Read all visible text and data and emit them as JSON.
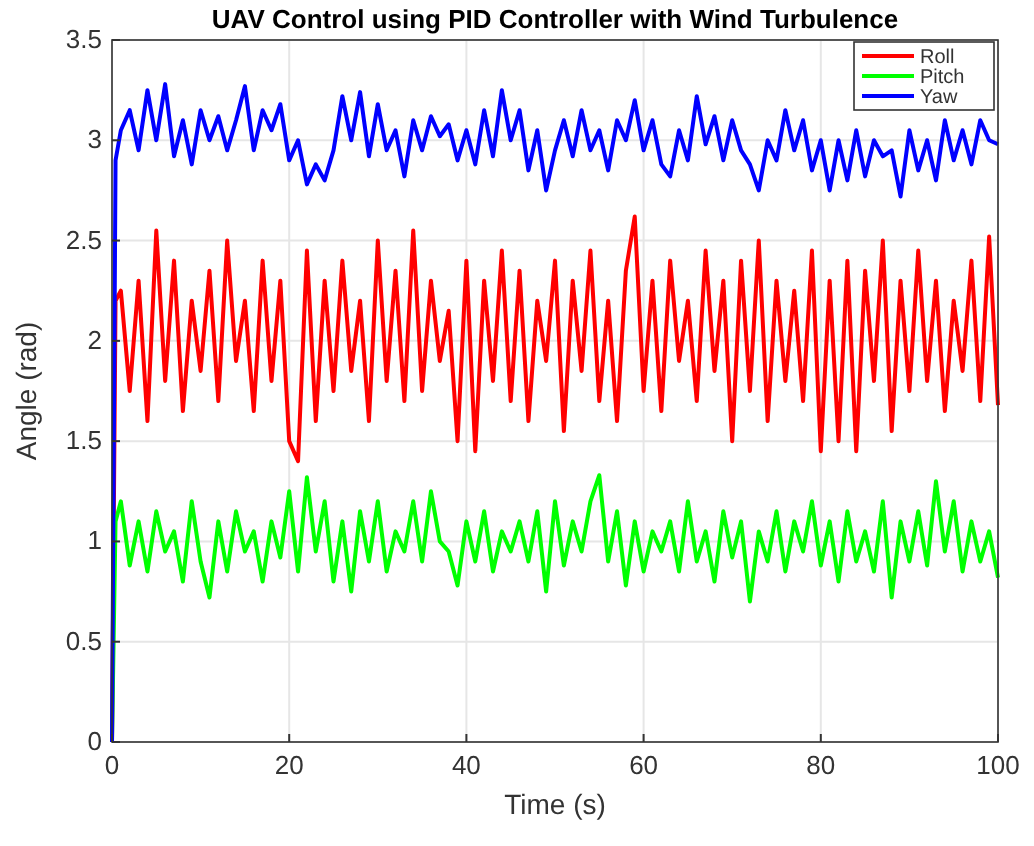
{
  "chart_data": {
    "type": "line",
    "title": "UAV Control using PID Controller with Wind Turbulence",
    "xlabel": "Time (s)",
    "ylabel": "Angle (rad)",
    "x": [
      0,
      0.4,
      1,
      2,
      3,
      4,
      5,
      6,
      7,
      8,
      9,
      10,
      11,
      12,
      13,
      14,
      15,
      16,
      17,
      18,
      19,
      20,
      21,
      22,
      23,
      24,
      25,
      26,
      27,
      28,
      29,
      30,
      31,
      32,
      33,
      34,
      35,
      36,
      37,
      38,
      39,
      40,
      41,
      42,
      43,
      44,
      45,
      46,
      47,
      48,
      49,
      50,
      51,
      52,
      53,
      54,
      55,
      56,
      57,
      58,
      59,
      60,
      61,
      62,
      63,
      64,
      65,
      66,
      67,
      68,
      69,
      70,
      71,
      72,
      73,
      74,
      75,
      76,
      77,
      78,
      79,
      80,
      81,
      82,
      83,
      84,
      85,
      86,
      87,
      88,
      89,
      90,
      91,
      92,
      93,
      94,
      95,
      96,
      97,
      98,
      99,
      100
    ],
    "series": [
      {
        "name": "Roll",
        "color": "#ff0000",
        "values": [
          0,
          2.2,
          2.25,
          1.75,
          2.3,
          1.6,
          2.55,
          1.8,
          2.4,
          1.65,
          2.2,
          1.85,
          2.35,
          1.7,
          2.5,
          1.9,
          2.2,
          1.65,
          2.4,
          1.8,
          2.3,
          1.5,
          1.4,
          2.45,
          1.6,
          2.3,
          1.75,
          2.4,
          1.85,
          2.2,
          1.6,
          2.5,
          1.8,
          2.35,
          1.7,
          2.55,
          1.75,
          2.3,
          1.9,
          2.15,
          1.5,
          2.4,
          1.45,
          2.3,
          1.8,
          2.45,
          1.7,
          2.35,
          1.6,
          2.2,
          1.9,
          2.4,
          1.55,
          2.3,
          1.85,
          2.45,
          1.7,
          2.2,
          1.6,
          2.35,
          2.62,
          1.75,
          2.3,
          1.65,
          2.4,
          1.9,
          2.2,
          1.7,
          2.45,
          1.85,
          2.3,
          1.5,
          2.4,
          1.75,
          2.5,
          1.6,
          2.3,
          1.8,
          2.25,
          1.7,
          2.45,
          1.45,
          2.3,
          1.5,
          2.4,
          1.45,
          2.35,
          1.8,
          2.5,
          1.55,
          2.3,
          1.75,
          2.45,
          1.8,
          2.3,
          1.65,
          2.2,
          1.85,
          2.4,
          1.7,
          2.52,
          1.68
        ]
      },
      {
        "name": "Pitch",
        "color": "#00ff00",
        "values": [
          0,
          1.1,
          1.2,
          0.88,
          1.1,
          0.85,
          1.15,
          0.95,
          1.05,
          0.8,
          1.2,
          0.9,
          0.72,
          1.1,
          0.85,
          1.15,
          0.95,
          1.05,
          0.8,
          1.1,
          0.92,
          1.25,
          0.85,
          1.32,
          0.95,
          1.2,
          0.8,
          1.1,
          0.75,
          1.15,
          0.9,
          1.2,
          0.85,
          1.05,
          0.95,
          1.2,
          0.9,
          1.25,
          1.0,
          0.95,
          0.78,
          1.1,
          0.9,
          1.15,
          0.85,
          1.05,
          0.95,
          1.1,
          0.9,
          1.15,
          0.75,
          1.2,
          0.88,
          1.1,
          0.95,
          1.2,
          1.33,
          0.9,
          1.15,
          0.78,
          1.1,
          0.85,
          1.05,
          0.95,
          1.1,
          0.85,
          1.2,
          0.9,
          1.05,
          0.8,
          1.15,
          0.92,
          1.1,
          0.7,
          1.05,
          0.9,
          1.15,
          0.85,
          1.1,
          0.95,
          1.2,
          0.88,
          1.1,
          0.8,
          1.15,
          0.9,
          1.05,
          0.85,
          1.2,
          0.72,
          1.1,
          0.9,
          1.15,
          0.88,
          1.3,
          0.95,
          1.2,
          0.85,
          1.1,
          0.9,
          1.05,
          0.82
        ]
      },
      {
        "name": "Yaw",
        "color": "#0000ff",
        "values": [
          0,
          2.9,
          3.05,
          3.15,
          2.95,
          3.25,
          3.0,
          3.28,
          2.92,
          3.1,
          2.88,
          3.15,
          3.0,
          3.12,
          2.95,
          3.1,
          3.27,
          2.95,
          3.15,
          3.05,
          3.18,
          2.9,
          3.0,
          2.78,
          2.88,
          2.8,
          2.95,
          3.22,
          3.0,
          3.24,
          2.92,
          3.18,
          2.95,
          3.05,
          2.82,
          3.1,
          2.95,
          3.12,
          3.02,
          3.08,
          2.9,
          3.05,
          2.88,
          3.15,
          2.92,
          3.25,
          3.0,
          3.15,
          2.85,
          3.05,
          2.75,
          2.95,
          3.1,
          2.92,
          3.15,
          2.95,
          3.05,
          2.85,
          3.1,
          3.0,
          3.2,
          2.95,
          3.1,
          2.88,
          2.82,
          3.05,
          2.9,
          3.22,
          2.98,
          3.12,
          2.9,
          3.1,
          2.95,
          2.88,
          2.75,
          3.0,
          2.9,
          3.15,
          2.95,
          3.1,
          2.85,
          3.0,
          2.75,
          3.0,
          2.8,
          3.05,
          2.82,
          3.0,
          2.92,
          2.95,
          2.72,
          3.05,
          2.85,
          3.0,
          2.8,
          3.1,
          2.9,
          3.05,
          2.88,
          3.1,
          3.0,
          2.98
        ]
      }
    ],
    "xlim": [
      0,
      100
    ],
    "xticks": [
      0,
      20,
      40,
      60,
      80,
      100
    ],
    "ylim": [
      0,
      3.5
    ],
    "yticks": [
      0,
      0.5,
      1,
      1.5,
      2,
      2.5,
      3,
      3.5
    ],
    "grid": true,
    "legend": "top right",
    "line_style": "solid"
  }
}
